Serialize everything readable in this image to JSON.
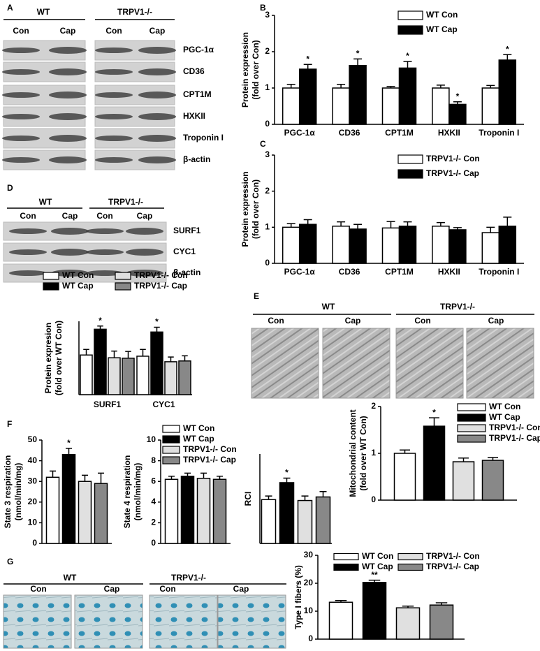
{
  "figure": {
    "blots": [
      {
        "panel": "A",
        "groups": [
          {
            "label": "WT",
            "lanes": [
              "Con",
              "Cap"
            ]
          },
          {
            "label": "TRPV1-/-",
            "lanes": [
              "Con",
              "Cap"
            ]
          }
        ],
        "rows": [
          "PGC-1α",
          "CD36",
          "CPT1M",
          "HXKII",
          "Troponin I",
          "β-actin"
        ]
      },
      {
        "panel": "D",
        "groups": [
          {
            "label": "WT",
            "lanes": [
              "Con",
              "Cap"
            ]
          },
          {
            "label": "TRPV1-/-",
            "lanes": [
              "Con",
              "Cap"
            ]
          }
        ],
        "rows": [
          "SURF1",
          "CYC1",
          "β-actin"
        ]
      }
    ],
    "micrographs": [
      {
        "panel": "E",
        "groups": [
          {
            "label": "WT",
            "lanes": [
              "Con",
              "Cap"
            ]
          },
          {
            "label": "TRPV1-/-",
            "lanes": [
              "Con",
              "Cap"
            ]
          }
        ]
      },
      {
        "panel": "G",
        "groups": [
          {
            "label": "WT",
            "lanes": [
              "Con",
              "Cap"
            ]
          },
          {
            "label": "TRPV1-/-",
            "lanes": [
              "Con",
              "Cap"
            ]
          }
        ]
      }
    ]
  },
  "chart_data": [
    {
      "type": "bar",
      "panel": "B",
      "ylabel": [
        "Protein expression",
        "(fold over Con)"
      ],
      "categories": [
        "PGC-1α",
        "CD36",
        "CPT1M",
        "HXKII",
        "Troponin I"
      ],
      "ylim": [
        0,
        3
      ],
      "yticks": [
        0,
        1,
        2,
        3
      ],
      "series": [
        {
          "name": "WT Con",
          "color": "#ffffff",
          "values": [
            1,
            1,
            1,
            1,
            1
          ],
          "errors": [
            0.1,
            0.1,
            0.04,
            0.08,
            0.07
          ]
        },
        {
          "name": "WT Cap",
          "color": "#000000",
          "values": [
            1.52,
            1.62,
            1.55,
            0.55,
            1.77
          ],
          "errors": [
            0.13,
            0.18,
            0.18,
            0.07,
            0.15
          ],
          "significance": [
            "*",
            "*",
            "*",
            "*",
            "*"
          ]
        }
      ]
    },
    {
      "type": "bar",
      "panel": "C",
      "ylabel": [
        "Protein expression",
        "(fold over Con)"
      ],
      "categories": [
        "PGC-1α",
        "CD36",
        "CPT1M",
        "HXKII",
        "Troponin I"
      ],
      "ylim": [
        0,
        3
      ],
      "yticks": [
        0,
        1,
        2,
        3
      ],
      "series": [
        {
          "name": "TRPV1-/- Con",
          "color": "#ffffff",
          "values": [
            1.0,
            1.03,
            0.98,
            1.03,
            0.85
          ],
          "errors": [
            0.1,
            0.12,
            0.18,
            0.1,
            0.15
          ]
        },
        {
          "name": "TRPV1-/- Cap",
          "color": "#000000",
          "values": [
            1.08,
            0.95,
            1.03,
            0.93,
            1.03
          ],
          "errors": [
            0.13,
            0.13,
            0.12,
            0.06,
            0.25
          ]
        }
      ]
    },
    {
      "type": "bar",
      "ylabel": [
        "Protein expresion",
        "(fold over WT Con)"
      ],
      "categories": [
        "SURF1",
        "CYC1"
      ],
      "ylim": [
        0,
        1.85
      ],
      "series": [
        {
          "name": "WT Con",
          "color": "#ffffff",
          "values": [
            1.0,
            0.97
          ],
          "errors": [
            0.14,
            0.17
          ]
        },
        {
          "name": "WT Cap",
          "color": "#000000",
          "values": [
            1.65,
            1.58
          ],
          "errors": [
            0.08,
            0.12
          ],
          "significance": [
            "*",
            "*"
          ]
        },
        {
          "name": "TRPV1-/- Con",
          "color": "#e0e0e0",
          "values": [
            0.93,
            0.83
          ],
          "errors": [
            0.17,
            0.12
          ]
        },
        {
          "name": "TRPV1-/- Cap",
          "color": "#888888",
          "values": [
            0.92,
            0.85
          ],
          "errors": [
            0.17,
            0.13
          ]
        }
      ]
    },
    {
      "type": "bar",
      "ylabel": [
        "Mitochondrial content",
        "(fold over WT Con)"
      ],
      "ylim": [
        0,
        2
      ],
      "yticks": [
        0,
        1,
        2
      ],
      "series": [
        {
          "name": "WT Con",
          "color": "#ffffff",
          "values": [
            1.0
          ],
          "errors": [
            0.07
          ]
        },
        {
          "name": "WT Cap",
          "color": "#000000",
          "values": [
            1.58
          ],
          "errors": [
            0.18
          ],
          "significance": [
            "*"
          ]
        },
        {
          "name": "TRPV1-/- Con",
          "color": "#e0e0e0",
          "values": [
            0.82
          ],
          "errors": [
            0.08
          ]
        },
        {
          "name": "TRPV1-/- Cap",
          "color": "#888888",
          "values": [
            0.85
          ],
          "errors": [
            0.06
          ]
        }
      ]
    },
    {
      "type": "bar",
      "panel": "F",
      "ylabel": [
        "State 3 respiration",
        "(nmol/min/mg)"
      ],
      "ylim": [
        0,
        50
      ],
      "yticks": [
        0,
        10,
        20,
        30,
        40,
        50
      ],
      "series": [
        {
          "color": "#ffffff",
          "values": [
            32
          ],
          "errors": [
            3
          ]
        },
        {
          "color": "#000000",
          "values": [
            43
          ],
          "errors": [
            3
          ],
          "significance": [
            "*"
          ]
        },
        {
          "color": "#e0e0e0",
          "values": [
            30
          ],
          "errors": [
            3
          ]
        },
        {
          "color": "#888888",
          "values": [
            29
          ],
          "errors": [
            5
          ]
        }
      ]
    },
    {
      "type": "bar",
      "ylabel": [
        "State 4 respiration",
        "(nmol/min/mg)"
      ],
      "ylim": [
        0,
        10
      ],
      "yticks": [
        0,
        2,
        4,
        6,
        8,
        10
      ],
      "series": [
        {
          "name": "WT Con",
          "color": "#ffffff",
          "values": [
            6.2
          ],
          "errors": [
            0.3
          ]
        },
        {
          "name": "WT Cap",
          "color": "#000000",
          "values": [
            6.5
          ],
          "errors": [
            0.3
          ]
        },
        {
          "name": "TRPV1-/- Con",
          "color": "#e0e0e0",
          "values": [
            6.3
          ],
          "errors": [
            0.5
          ]
        },
        {
          "name": "TRPV1-/- Cap",
          "color": "#888888",
          "values": [
            6.2
          ],
          "errors": [
            0.3
          ]
        }
      ]
    },
    {
      "type": "bar",
      "ylabel": [
        "RCI"
      ],
      "ylim": [
        0,
        10
      ],
      "series": [
        {
          "color": "#ffffff",
          "values": [
            4.9
          ],
          "errors": [
            0.4
          ]
        },
        {
          "color": "#000000",
          "values": [
            6.8
          ],
          "errors": [
            0.5
          ],
          "significance": [
            "*"
          ]
        },
        {
          "color": "#e0e0e0",
          "values": [
            4.8
          ],
          "errors": [
            0.5
          ]
        },
        {
          "color": "#888888",
          "values": [
            5.2
          ],
          "errors": [
            0.6
          ]
        }
      ]
    },
    {
      "type": "bar",
      "ylabel": [
        "Type I fibers (%)"
      ],
      "ylim": [
        0,
        30
      ],
      "yticks": [
        0,
        10,
        20,
        30
      ],
      "series": [
        {
          "name": "WT Con",
          "color": "#ffffff",
          "values": [
            13.2
          ],
          "errors": [
            0.6
          ]
        },
        {
          "name": "WT Cap",
          "color": "#000000",
          "values": [
            20.3
          ],
          "errors": [
            0.8
          ],
          "significance": [
            "**"
          ]
        },
        {
          "name": "TRPV1-/- Con",
          "color": "#e0e0e0",
          "values": [
            11.2
          ],
          "errors": [
            0.6
          ]
        },
        {
          "name": "TRPV1-/- Cap",
          "color": "#888888",
          "values": [
            12.2
          ],
          "errors": [
            0.8
          ]
        }
      ]
    }
  ]
}
